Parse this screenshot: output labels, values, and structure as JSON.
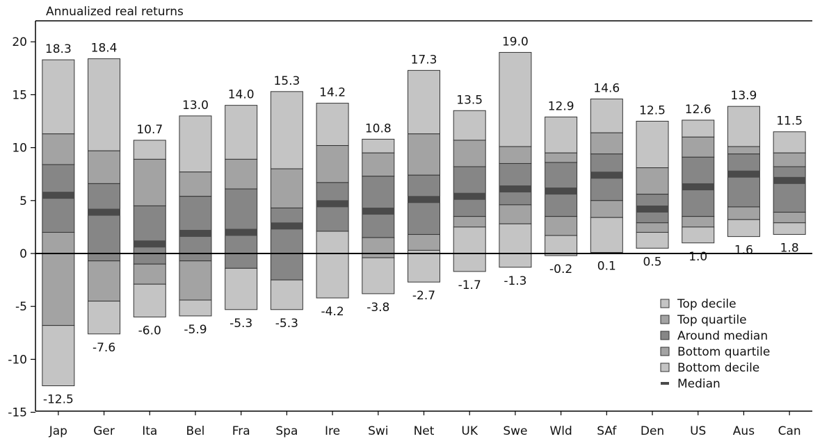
{
  "chart_data": {
    "type": "bar",
    "subtype": "floating-stacked-range",
    "ylabel": "Annualized real returns",
    "ylim": [
      -15,
      22
    ],
    "yticks": [
      20,
      15,
      10,
      5,
      0,
      -5,
      -10,
      -15
    ],
    "grid": false,
    "legend_position": "bottom-right",
    "categories": [
      "Jap",
      "Ger",
      "Ita",
      "Bel",
      "Fra",
      "Spa",
      "Ire",
      "Swi",
      "Net",
      "UK",
      "Swe",
      "Wld",
      "SAf",
      "Den",
      "US",
      "Aus",
      "Can"
    ],
    "max": [
      18.3,
      18.4,
      10.7,
      13.0,
      14.0,
      15.3,
      14.2,
      10.8,
      17.3,
      13.5,
      19.0,
      12.9,
      14.6,
      12.5,
      12.6,
      13.9,
      11.5
    ],
    "max_labels": [
      "18.3",
      "18.4",
      "10.7",
      "13.0",
      "14.0",
      "15.3",
      "14.2",
      "10.8",
      "17.3",
      "13.5",
      "19.0",
      "12.9",
      "14.6",
      "12.5",
      "12.6",
      "13.9",
      "11.5"
    ],
    "top_decile_lower": [
      11.3,
      9.7,
      8.9,
      7.7,
      8.9,
      8.0,
      10.2,
      9.5,
      11.3,
      10.7,
      10.1,
      9.5,
      11.4,
      8.1,
      11.0,
      10.1,
      9.5
    ],
    "top_quartile_lower": [
      8.4,
      6.6,
      4.5,
      5.4,
      6.1,
      4.3,
      6.7,
      7.3,
      7.4,
      8.2,
      8.5,
      8.6,
      9.4,
      5.6,
      9.1,
      9.4,
      8.2
    ],
    "median": [
      5.5,
      3.9,
      0.9,
      1.9,
      2.0,
      2.6,
      4.7,
      4.0,
      5.1,
      5.4,
      6.1,
      5.9,
      7.4,
      4.2,
      6.3,
      7.5,
      6.9
    ],
    "around_median_lower": [
      2.0,
      -0.7,
      -1.0,
      -0.7,
      -1.4,
      -2.5,
      2.1,
      1.5,
      1.8,
      3.5,
      4.6,
      3.5,
      5.0,
      2.9,
      3.5,
      4.4,
      3.9
    ],
    "bottom_quartile_lower": [
      -6.8,
      -4.5,
      -2.9,
      -4.4,
      -1.4,
      -2.5,
      2.1,
      -0.4,
      0.3,
      2.5,
      2.8,
      1.7,
      3.4,
      2.0,
      2.5,
      3.2,
      2.9
    ],
    "min": [
      -12.5,
      -7.6,
      -6.0,
      -5.9,
      -5.3,
      -5.3,
      -4.2,
      -3.8,
      -2.7,
      -1.7,
      -1.3,
      -0.2,
      0.1,
      0.5,
      1.0,
      1.6,
      1.8
    ],
    "min_labels": [
      "-12.5",
      "-7.6",
      "-6.0",
      "-5.9",
      "-5.3",
      "-5.3",
      "-4.2",
      "-3.8",
      "-2.7",
      "-1.7",
      "-1.3",
      "-0.2",
      "0.1",
      "0.5",
      "1.0",
      "1.6",
      "1.8"
    ],
    "legend": [
      {
        "label": "Top decile",
        "color": "#c4c4c4",
        "marker": "box"
      },
      {
        "label": "Top quartile",
        "color": "#a3a3a3",
        "marker": "box"
      },
      {
        "label": "Around median",
        "color": "#868686",
        "marker": "box"
      },
      {
        "label": "Bottom quartile",
        "color": "#a3a3a3",
        "marker": "box"
      },
      {
        "label": "Bottom decile",
        "color": "#c4c4c4",
        "marker": "box"
      },
      {
        "label": "Median",
        "color": "#4a4a4a",
        "marker": "line"
      }
    ],
    "colors": {
      "decile": "#c4c4c4",
      "quartile": "#a3a3a3",
      "median_band": "#868686",
      "median_line": "#4a4a4a",
      "stroke": "#333333"
    }
  }
}
